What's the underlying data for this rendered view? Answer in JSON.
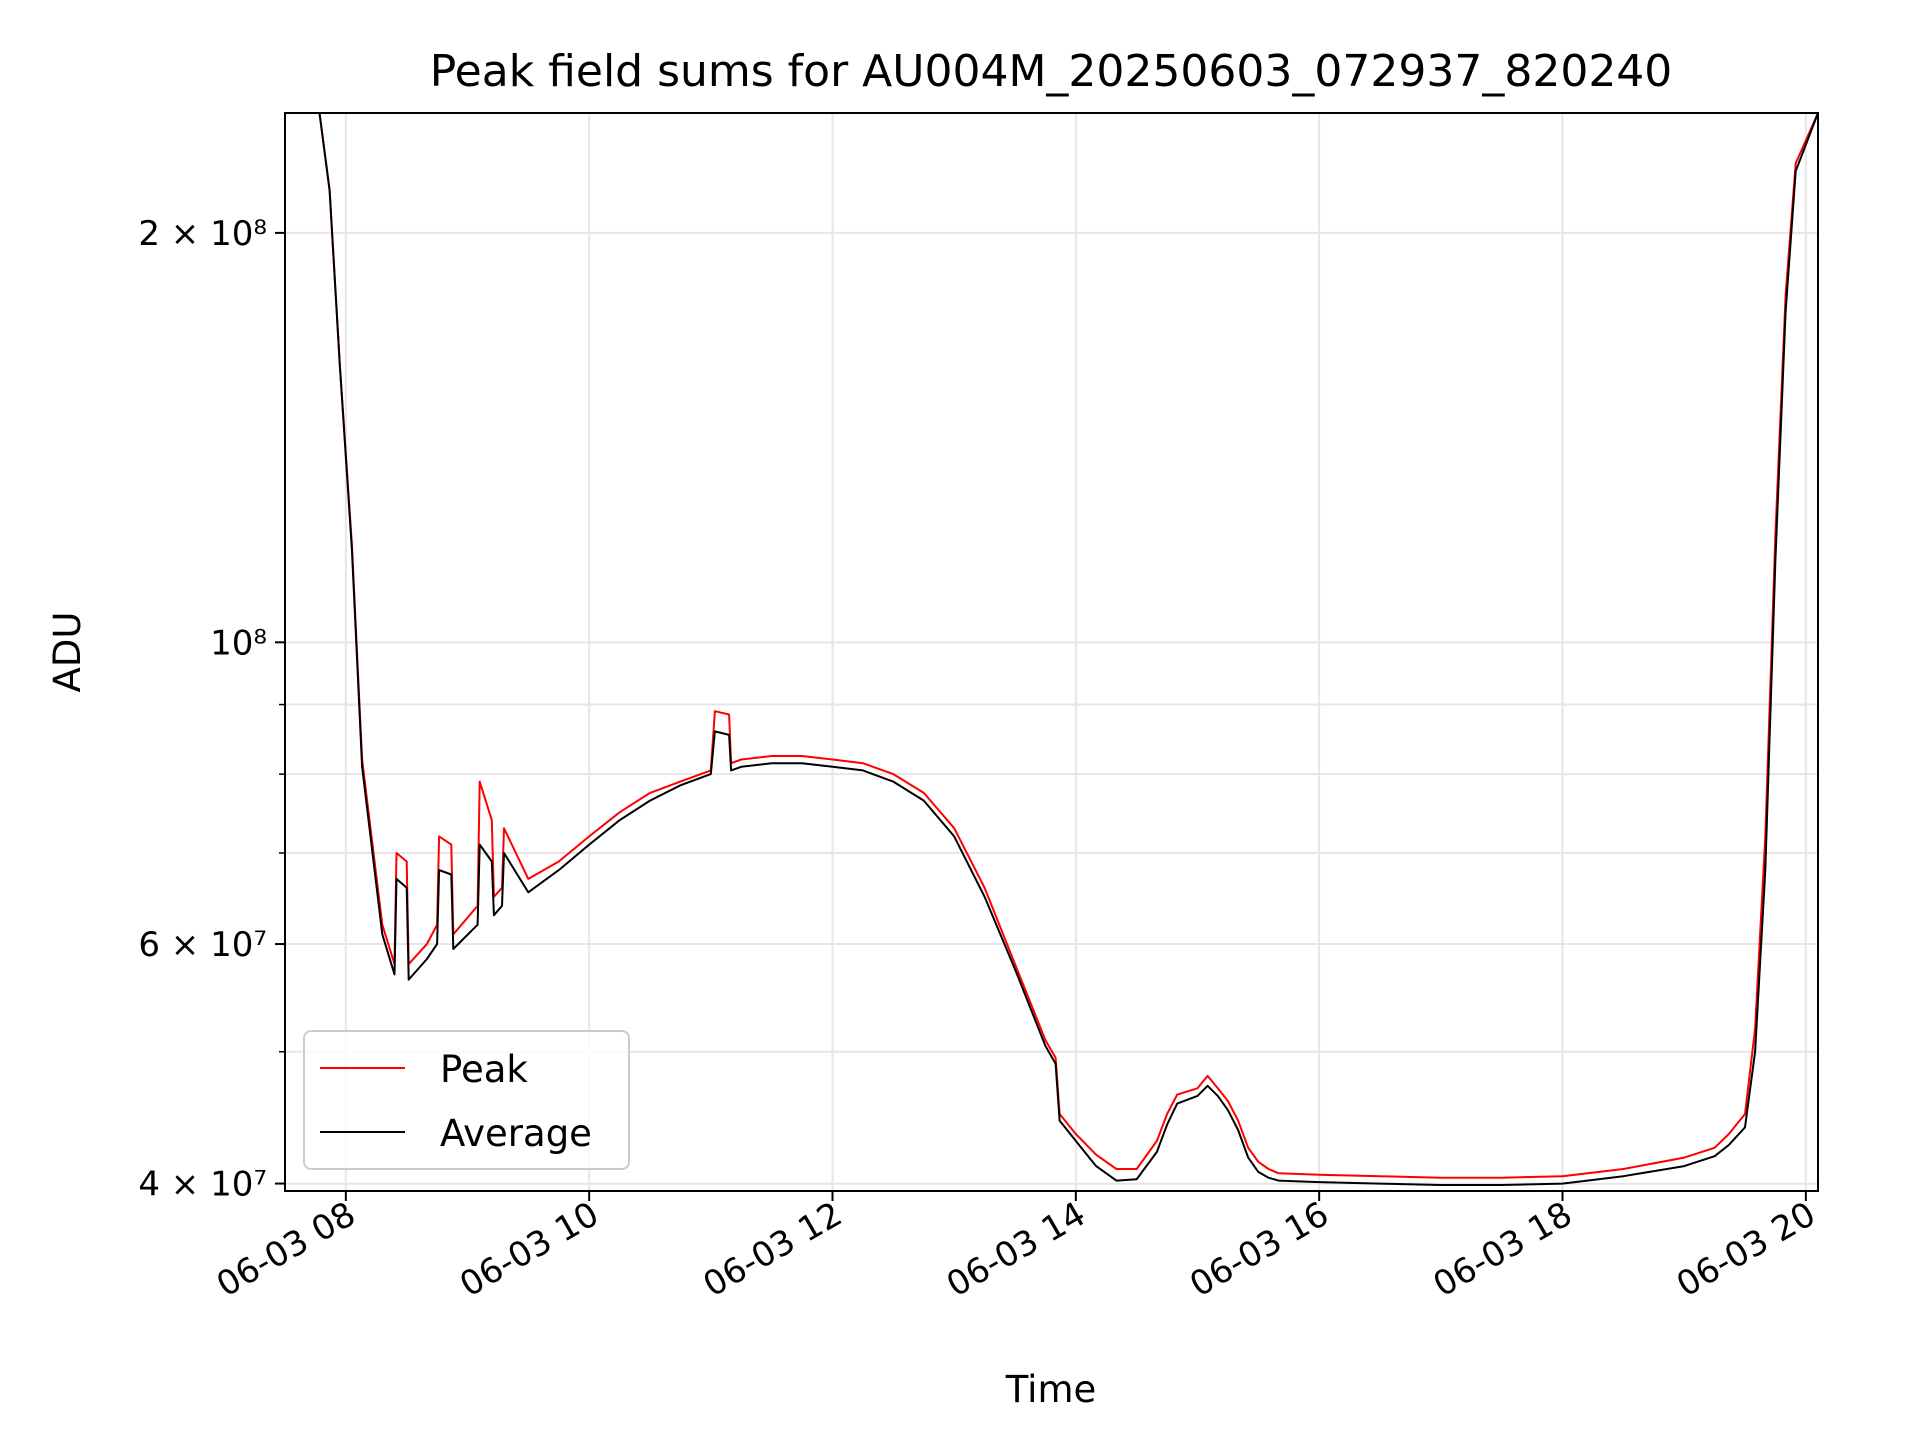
{
  "chart_data": {
    "type": "line",
    "title": "Peak field sums for AU004M_20250603_072937_820240",
    "xlabel": "Time",
    "ylabel": "ADU",
    "yscale": "log",
    "xlim": [
      "06-03 07:30",
      "06-03 20:06"
    ],
    "ylim": [
      39500000,
      245000000
    ],
    "grid": true,
    "legend_position": "lower-left",
    "x_ticks": [
      {
        "t": "06-03 08:00",
        "label": "06-03 08"
      },
      {
        "t": "06-03 10:00",
        "label": "06-03 10"
      },
      {
        "t": "06-03 12:00",
        "label": "06-03 12"
      },
      {
        "t": "06-03 14:00",
        "label": "06-03 14"
      },
      {
        "t": "06-03 16:00",
        "label": "06-03 16"
      },
      {
        "t": "06-03 18:00",
        "label": "06-03 18"
      },
      {
        "t": "06-03 20:00",
        "label": "06-03 20"
      }
    ],
    "y_ticks": [
      {
        "value": 40000000,
        "label": "4 × 10⁷"
      },
      {
        "value": 60000000,
        "label": "6 × 10⁷"
      },
      {
        "value": 100000000,
        "label": "10⁸"
      },
      {
        "value": 200000000,
        "label": "2 × 10⁸"
      }
    ],
    "y_minor_ticks": [
      50000000,
      70000000,
      80000000,
      90000000
    ],
    "series": [
      {
        "name": "Peak",
        "color": "#ff0000",
        "x": [
          "06-03 07:30",
          "06-03 07:47",
          "06-03 07:52",
          "06-03 07:57",
          "06-03 08:03",
          "06-03 08:08",
          "06-03 08:18",
          "06-03 08:24",
          "06-03 08:25",
          "06-03 08:30",
          "06-03 08:31",
          "06-03 08:40",
          "06-03 08:45",
          "06-03 08:46",
          "06-03 08:52",
          "06-03 08:53",
          "06-03 09:05",
          "06-03 09:06",
          "06-03 09:12",
          "06-03 09:13",
          "06-03 09:17",
          "06-03 09:18",
          "06-03 09:30",
          "06-03 09:45",
          "06-03 10:00",
          "06-03 10:15",
          "06-03 10:30",
          "06-03 10:45",
          "06-03 11:00",
          "06-03 11:02",
          "06-03 11:09",
          "06-03 11:10",
          "06-03 11:15",
          "06-03 11:30",
          "06-03 11:45",
          "06-03 12:00",
          "06-03 12:15",
          "06-03 12:30",
          "06-03 12:45",
          "06-03 13:00",
          "06-03 13:15",
          "06-03 13:30",
          "06-03 13:45",
          "06-03 13:50",
          "06-03 13:52",
          "06-03 14:00",
          "06-03 14:10",
          "06-03 14:20",
          "06-03 14:30",
          "06-03 14:40",
          "06-03 14:45",
          "06-03 14:50",
          "06-03 15:00",
          "06-03 15:05",
          "06-03 15:10",
          "06-03 15:15",
          "06-03 15:20",
          "06-03 15:25",
          "06-03 15:30",
          "06-03 15:35",
          "06-03 15:40",
          "06-03 16:00",
          "06-03 16:30",
          "06-03 17:00",
          "06-03 17:30",
          "06-03 18:00",
          "06-03 18:30",
          "06-03 19:00",
          "06-03 19:15",
          "06-03 19:22",
          "06-03 19:30",
          "06-03 19:35",
          "06-03 19:40",
          "06-03 19:45",
          "06-03 19:50",
          "06-03 19:55",
          "06-03 20:06"
        ],
        "values": [
          245000000,
          245000000,
          215000000,
          160000000,
          118000000,
          82000000,
          62000000,
          58000000,
          70000000,
          69000000,
          58000000,
          60000000,
          62000000,
          72000000,
          71000000,
          61000000,
          64000000,
          79000000,
          74000000,
          65000000,
          66000000,
          73000000,
          67000000,
          69000000,
          72000000,
          75000000,
          77500000,
          79000000,
          80500000,
          89000000,
          88500000,
          81500000,
          82000000,
          82500000,
          82500000,
          82000000,
          81500000,
          80000000,
          77500000,
          73000000,
          66000000,
          58000000,
          51000000,
          49500000,
          45000000,
          43500000,
          42000000,
          41000000,
          41000000,
          43000000,
          45000000,
          46500000,
          47000000,
          48000000,
          47000000,
          46000000,
          44500000,
          42500000,
          41500000,
          41000000,
          40700000,
          40600000,
          40500000,
          40400000,
          40400000,
          40500000,
          41000000,
          41800000,
          42500000,
          43500000,
          45000000,
          52000000,
          72000000,
          120000000,
          180000000,
          225000000,
          245000000
        ]
      },
      {
        "name": "Average",
        "color": "#000000",
        "x": [
          "06-03 07:30",
          "06-03 07:47",
          "06-03 07:52",
          "06-03 07:57",
          "06-03 08:03",
          "06-03 08:08",
          "06-03 08:18",
          "06-03 08:24",
          "06-03 08:25",
          "06-03 08:30",
          "06-03 08:31",
          "06-03 08:40",
          "06-03 08:45",
          "06-03 08:46",
          "06-03 08:52",
          "06-03 08:53",
          "06-03 09:05",
          "06-03 09:06",
          "06-03 09:12",
          "06-03 09:13",
          "06-03 09:17",
          "06-03 09:18",
          "06-03 09:30",
          "06-03 09:45",
          "06-03 10:00",
          "06-03 10:15",
          "06-03 10:30",
          "06-03 10:45",
          "06-03 11:00",
          "06-03 11:02",
          "06-03 11:09",
          "06-03 11:10",
          "06-03 11:15",
          "06-03 11:30",
          "06-03 11:45",
          "06-03 12:00",
          "06-03 12:15",
          "06-03 12:30",
          "06-03 12:45",
          "06-03 13:00",
          "06-03 13:15",
          "06-03 13:30",
          "06-03 13:45",
          "06-03 13:50",
          "06-03 13:52",
          "06-03 14:00",
          "06-03 14:10",
          "06-03 14:20",
          "06-03 14:30",
          "06-03 14:40",
          "06-03 14:45",
          "06-03 14:50",
          "06-03 15:00",
          "06-03 15:05",
          "06-03 15:10",
          "06-03 15:15",
          "06-03 15:20",
          "06-03 15:25",
          "06-03 15:30",
          "06-03 15:35",
          "06-03 15:40",
          "06-03 16:00",
          "06-03 16:30",
          "06-03 17:00",
          "06-03 17:30",
          "06-03 18:00",
          "06-03 18:30",
          "06-03 19:00",
          "06-03 19:15",
          "06-03 19:22",
          "06-03 19:30",
          "06-03 19:35",
          "06-03 19:40",
          "06-03 19:45",
          "06-03 19:50",
          "06-03 19:55",
          "06-03 20:06"
        ],
        "values": [
          245000000,
          245000000,
          215000000,
          160000000,
          117000000,
          81000000,
          61000000,
          57000000,
          67000000,
          66000000,
          56500000,
          58500000,
          60000000,
          68000000,
          67500000,
          59500000,
          62000000,
          71000000,
          69000000,
          63000000,
          64000000,
          70000000,
          65500000,
          68000000,
          71000000,
          74000000,
          76500000,
          78500000,
          80000000,
          86000000,
          85500000,
          80500000,
          81000000,
          81500000,
          81500000,
          81000000,
          80500000,
          79000000,
          76500000,
          72000000,
          65000000,
          57500000,
          50500000,
          49000000,
          44500000,
          43000000,
          41200000,
          40200000,
          40300000,
          42200000,
          44200000,
          45800000,
          46400000,
          47200000,
          46400000,
          45300000,
          43800000,
          41800000,
          40800000,
          40400000,
          40200000,
          40100000,
          40000000,
          39900000,
          39900000,
          40000000,
          40500000,
          41200000,
          41900000,
          42700000,
          44000000,
          50000000,
          68000000,
          115000000,
          175000000,
          222000000,
          245000000
        ]
      }
    ]
  }
}
